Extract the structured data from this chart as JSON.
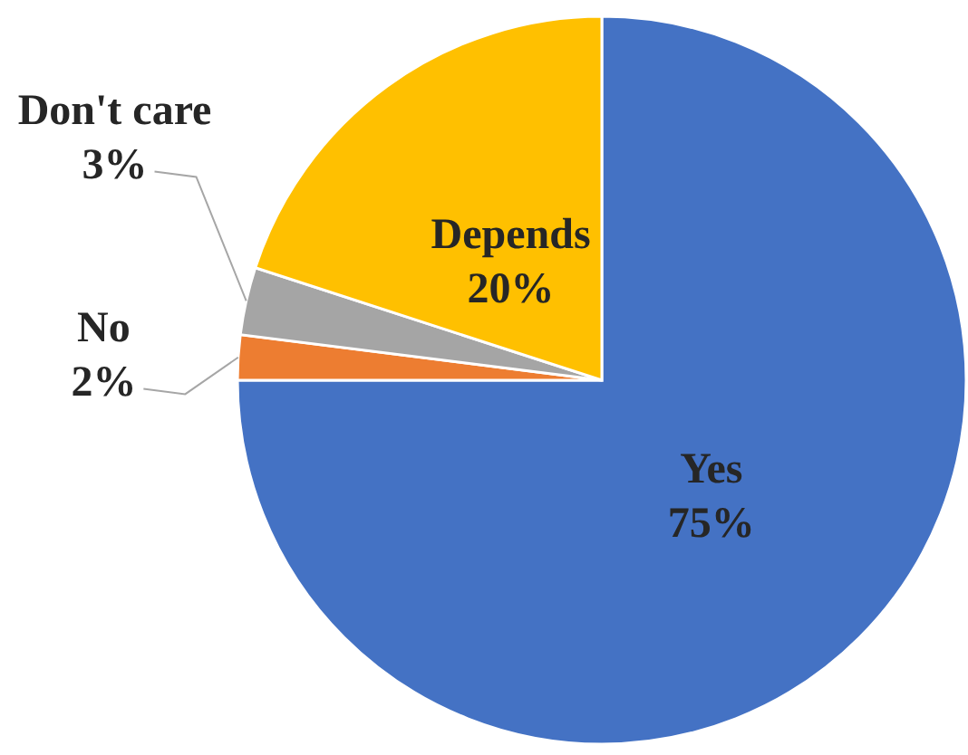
{
  "chart_data": {
    "type": "pie",
    "categories": [
      "Yes",
      "No",
      "Don't care",
      "Depends"
    ],
    "values": [
      75,
      2,
      3,
      20
    ],
    "colors": [
      "#4472c4",
      "#ed7d31",
      "#a5a5a5",
      "#ffc000"
    ],
    "value_labels": [
      "75%",
      "2%",
      "3%",
      "20%"
    ]
  }
}
